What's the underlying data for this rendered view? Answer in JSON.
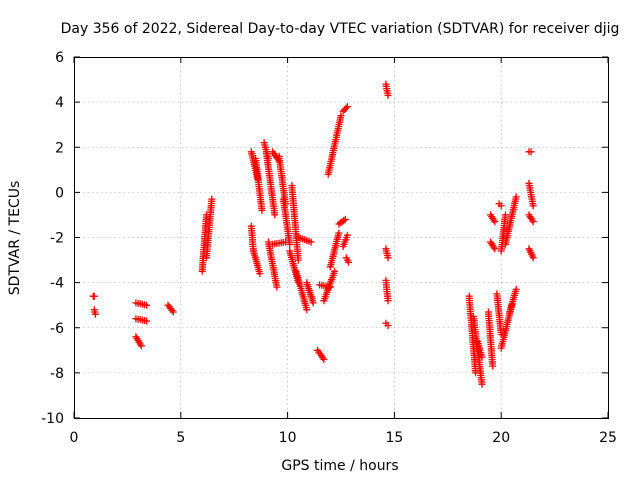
{
  "chart_data": {
    "type": "scatter",
    "title": "Day 356 of 2022, Sidereal Day-to-day VTEC variation (SDTVAR) for receiver djig",
    "xlabel": "GPS time / hours",
    "ylabel": "SDTVAR / TECUs",
    "xlim": [
      0,
      25
    ],
    "ylim": [
      -10,
      6
    ],
    "xticks": [
      "0",
      "5",
      "10",
      "15",
      "20",
      "25"
    ],
    "yticks": [
      "-10",
      "-8",
      "-6",
      "-4",
      "-2",
      "0",
      "2",
      "4",
      "6"
    ],
    "grid": true,
    "marker": "+",
    "color": "#ff0000",
    "segments": [
      {
        "x": [
          0.9,
          0.95
        ],
        "y": [
          -4.6,
          -4.6
        ]
      },
      {
        "x": [
          0.95,
          1.0
        ],
        "y": [
          -5.2,
          -5.4
        ]
      },
      {
        "x": [
          2.9,
          3.4
        ],
        "y": [
          -4.9,
          -5.0
        ]
      },
      {
        "x": [
          2.9,
          3.4
        ],
        "y": [
          -5.6,
          -5.7
        ]
      },
      {
        "x": [
          2.9,
          3.15
        ],
        "y": [
          -6.4,
          -6.8
        ]
      },
      {
        "x": [
          4.4,
          4.65
        ],
        "y": [
          -5.0,
          -5.3
        ]
      },
      {
        "x": [
          6.0,
          6.2
        ],
        "y": [
          -3.5,
          -1.0
        ]
      },
      {
        "x": [
          6.2,
          6.45
        ],
        "y": [
          -2.9,
          -0.3
        ]
      },
      {
        "x": [
          8.3,
          8.4
        ],
        "y": [
          -1.5,
          -2.6
        ]
      },
      {
        "x": [
          8.3,
          8.6
        ],
        "y": [
          1.8,
          0.6
        ]
      },
      {
        "x": [
          8.4,
          8.7
        ],
        "y": [
          -2.6,
          -3.6
        ]
      },
      {
        "x": [
          8.5,
          8.8
        ],
        "y": [
          1.5,
          -0.8
        ]
      },
      {
        "x": [
          8.9,
          9.1
        ],
        "y": [
          2.2,
          1.5
        ]
      },
      {
        "x": [
          9.0,
          9.4
        ],
        "y": [
          1.8,
          -1.0
        ]
      },
      {
        "x": [
          9.1,
          9.5
        ],
        "y": [
          -2.2,
          -4.2
        ]
      },
      {
        "x": [
          9.3,
          9.6
        ],
        "y": [
          1.8,
          1.4
        ]
      },
      {
        "x": [
          9.6,
          9.9
        ],
        "y": [
          1.6,
          -0.5
        ]
      },
      {
        "x": [
          9.3,
          9.9
        ],
        "y": [
          -2.3,
          -2.2
        ]
      },
      {
        "x": [
          9.8,
          10.1
        ],
        "y": [
          -0.3,
          -2.3
        ]
      },
      {
        "x": [
          10.2,
          10.5
        ],
        "y": [
          0.3,
          -3.0
        ]
      },
      {
        "x": [
          10.1,
          10.5
        ],
        "y": [
          -2.6,
          -4.0
        ]
      },
      {
        "x": [
          10.4,
          10.9
        ],
        "y": [
          -3.5,
          -5.2
        ]
      },
      {
        "x": [
          10.5,
          11.1
        ],
        "y": [
          -2.0,
          -2.2
        ]
      },
      {
        "x": [
          10.9,
          11.2
        ],
        "y": [
          -4.0,
          -4.9
        ]
      },
      {
        "x": [
          11.4,
          11.7
        ],
        "y": [
          -7.0,
          -7.4
        ]
      },
      {
        "x": [
          11.5,
          12.0
        ],
        "y": [
          -4.1,
          -4.2
        ]
      },
      {
        "x": [
          11.7,
          12.2
        ],
        "y": [
          -4.8,
          -3.5
        ]
      },
      {
        "x": [
          11.9,
          12.5
        ],
        "y": [
          0.8,
          3.4
        ]
      },
      {
        "x": [
          12.0,
          12.4
        ],
        "y": [
          -3.3,
          -1.8
        ]
      },
      {
        "x": [
          12.4,
          12.7
        ],
        "y": [
          -1.4,
          -1.2
        ]
      },
      {
        "x": [
          12.6,
          12.8
        ],
        "y": [
          -2.4,
          -1.9
        ]
      },
      {
        "x": [
          12.6,
          12.8
        ],
        "y": [
          3.6,
          3.8
        ]
      },
      {
        "x": [
          12.75,
          12.85
        ],
        "y": [
          -2.9,
          -3.1
        ]
      },
      {
        "x": [
          14.6,
          14.7
        ],
        "y": [
          4.8,
          4.3
        ]
      },
      {
        "x": [
          14.6,
          14.7
        ],
        "y": [
          -2.5,
          -2.9
        ]
      },
      {
        "x": [
          14.6,
          14.7
        ],
        "y": [
          -3.9,
          -4.8
        ]
      },
      {
        "x": [
          14.6,
          14.7
        ],
        "y": [
          -5.8,
          -5.9
        ]
      },
      {
        "x": [
          18.5,
          18.8
        ],
        "y": [
          -4.6,
          -8.0
        ]
      },
      {
        "x": [
          18.7,
          19.1
        ],
        "y": [
          -5.5,
          -8.5
        ]
      },
      {
        "x": [
          18.9,
          19.1
        ],
        "y": [
          -6.6,
          -7.3
        ]
      },
      {
        "x": [
          19.4,
          19.6
        ],
        "y": [
          -5.3,
          -7.7
        ]
      },
      {
        "x": [
          19.5,
          19.7
        ],
        "y": [
          -1.0,
          -1.3
        ]
      },
      {
        "x": [
          19.5,
          19.7
        ],
        "y": [
          -2.2,
          -2.5
        ]
      },
      {
        "x": [
          19.8,
          20.0
        ],
        "y": [
          -4.5,
          -6.3
        ]
      },
      {
        "x": [
          19.9,
          20.0
        ],
        "y": [
          -0.5,
          -0.6
        ]
      },
      {
        "x": [
          20.0,
          20.2
        ],
        "y": [
          -2.6,
          -1.0
        ]
      },
      {
        "x": [
          20.0,
          20.5
        ],
        "y": [
          -6.9,
          -5.0
        ]
      },
      {
        "x": [
          20.2,
          20.7
        ],
        "y": [
          -2.3,
          -0.2
        ]
      },
      {
        "x": [
          20.4,
          20.7
        ],
        "y": [
          -5.3,
          -4.3
        ]
      },
      {
        "x": [
          21.3,
          21.4
        ],
        "y": [
          1.8,
          1.8
        ]
      },
      {
        "x": [
          21.3,
          21.5
        ],
        "y": [
          0.4,
          -0.6
        ]
      },
      {
        "x": [
          21.3,
          21.5
        ],
        "y": [
          -1.0,
          -1.3
        ]
      },
      {
        "x": [
          21.3,
          21.5
        ],
        "y": [
          -2.5,
          -2.9
        ]
      }
    ]
  }
}
